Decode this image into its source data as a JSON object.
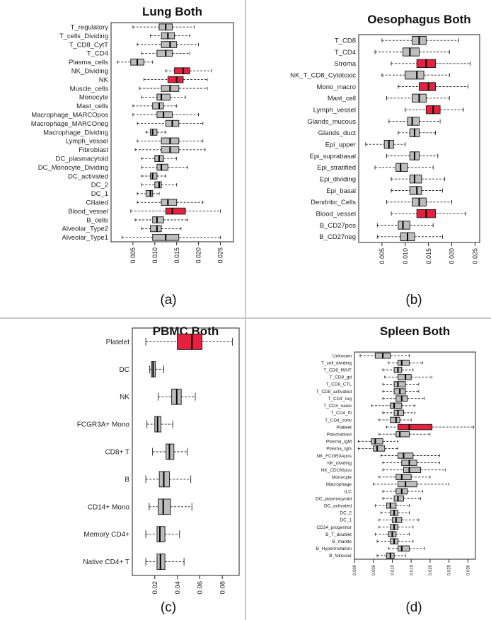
{
  "figure": {
    "captions": [
      "(a)",
      "(b)",
      "(c)",
      "(d)"
    ]
  },
  "colors": {
    "box_default": "#bdbdbd",
    "box_highlight": "#e8203f",
    "stroke": "#222222"
  },
  "chart_data": [
    {
      "type": "boxplot",
      "orientation": "horizontal",
      "title": "Lung Both",
      "xlim": [
        0.0,
        0.028
      ],
      "ticks": [
        0.005,
        0.01,
        0.015,
        0.02,
        0.025
      ],
      "tick_labels": [
        "0.005",
        "0.010",
        "0.015",
        "0.020",
        "0.025"
      ],
      "categories": [
        {
          "label": "T_regulatory",
          "stats": [
            0.005,
            0.011,
            0.0125,
            0.014,
            0.019
          ]
        },
        {
          "label": "T_cells_Dividing",
          "stats": [
            0.009,
            0.0115,
            0.013,
            0.0145,
            0.018
          ]
        },
        {
          "label": "T_CD8_CytT",
          "stats": [
            0.006,
            0.0115,
            0.0135,
            0.015,
            0.02
          ]
        },
        {
          "label": "T_CD4",
          "stats": [
            0.007,
            0.0105,
            0.0125,
            0.014,
            0.018
          ]
        },
        {
          "label": "Plasma_cells",
          "stats": [
            0.0015,
            0.0045,
            0.006,
            0.0075,
            0.0095
          ]
        },
        {
          "label": "NK_Dividing",
          "stats": [
            0.0125,
            0.0145,
            0.0165,
            0.018,
            0.023
          ]
        },
        {
          "label": "NK",
          "stats": [
            0.0075,
            0.013,
            0.015,
            0.0165,
            0.022
          ]
        },
        {
          "label": "Muscle_cells",
          "stats": [
            0.0065,
            0.0115,
            0.0135,
            0.0155,
            0.022
          ]
        },
        {
          "label": "Monocyte",
          "stats": [
            0.007,
            0.0105,
            0.0115,
            0.0135,
            0.017
          ]
        },
        {
          "label": "Mast_cells",
          "stats": [
            0.005,
            0.0095,
            0.011,
            0.012,
            0.015
          ]
        },
        {
          "label": "Macrophage_MARCOpos",
          "stats": [
            0.005,
            0.0105,
            0.012,
            0.014,
            0.02
          ]
        },
        {
          "label": "Macrophage_MARCOneg",
          "stats": [
            0.006,
            0.0125,
            0.014,
            0.0155,
            0.021
          ]
        },
        {
          "label": "Macrophage_Dividing",
          "stats": [
            0.008,
            0.009,
            0.0095,
            0.0105,
            0.0125
          ]
        },
        {
          "label": "Lymph_vessel",
          "stats": [
            0.006,
            0.0115,
            0.0135,
            0.0155,
            0.021
          ]
        },
        {
          "label": "Fibroblast",
          "stats": [
            0.0055,
            0.0115,
            0.0135,
            0.0155,
            0.0215
          ]
        },
        {
          "label": "DC_plasmacytoid",
          "stats": [
            0.007,
            0.01,
            0.011,
            0.012,
            0.015
          ]
        },
        {
          "label": "DC_Monocyte_Dividing",
          "stats": [
            0.007,
            0.0105,
            0.0115,
            0.013,
            0.0175
          ]
        },
        {
          "label": "DC_activated",
          "stats": [
            0.007,
            0.009,
            0.0095,
            0.0105,
            0.0125
          ]
        },
        {
          "label": "DC_2",
          "stats": [
            0.007,
            0.01,
            0.011,
            0.0115,
            0.015
          ]
        },
        {
          "label": "DC_1",
          "stats": [
            0.006,
            0.008,
            0.009,
            0.0095,
            0.011
          ]
        },
        {
          "label": "Ciliated",
          "stats": [
            0.006,
            0.0115,
            0.013,
            0.015,
            0.021
          ]
        },
        {
          "label": "Blood_vessel",
          "stats": [
            0.0045,
            0.0125,
            0.014,
            0.017,
            0.025
          ]
        },
        {
          "label": "B_cells",
          "stats": [
            0.0055,
            0.0095,
            0.0105,
            0.012,
            0.0175
          ]
        },
        {
          "label": "Alveolar_Type2",
          "stats": [
            0.007,
            0.009,
            0.0105,
            0.0115,
            0.016
          ]
        },
        {
          "label": "Alveolar_Type1",
          "stats": [
            0.0025,
            0.0095,
            0.0125,
            0.0155,
            0.025
          ]
        }
      ],
      "highlighted": [
        "NK_Dividing",
        "NK",
        "Blood_vessel"
      ]
    },
    {
      "type": "boxplot",
      "orientation": "horizontal",
      "title": "Oesophagus Both",
      "xlim": [
        0.0,
        0.026
      ],
      "ticks": [
        0.005,
        0.01,
        0.015,
        0.02,
        0.025
      ],
      "tick_labels": [
        "0.005",
        "0.010",
        "0.015",
        "0.020",
        "0.025"
      ],
      "categories": [
        {
          "label": "T_CD8",
          "stats": [
            0.005,
            0.0115,
            0.013,
            0.0145,
            0.0215
          ]
        },
        {
          "label": "T_CD4",
          "stats": [
            0.0035,
            0.0095,
            0.011,
            0.013,
            0.0195
          ]
        },
        {
          "label": "Stroma",
          "stats": [
            0.007,
            0.0125,
            0.0145,
            0.0165,
            0.024
          ]
        },
        {
          "label": "NK_T_CD8_Cytotoxic",
          "stats": [
            0.005,
            0.01,
            0.0125,
            0.014,
            0.0195
          ]
        },
        {
          "label": "Mono_macro",
          "stats": [
            0.0085,
            0.013,
            0.015,
            0.0165,
            0.0235
          ]
        },
        {
          "label": "Mast_cell",
          "stats": [
            0.006,
            0.0115,
            0.013,
            0.0145,
            0.0195
          ]
        },
        {
          "label": "Lymph_vessel",
          "stats": [
            0.01,
            0.0145,
            0.016,
            0.0175,
            0.0225
          ]
        },
        {
          "label": "Glands_mucous",
          "stats": [
            0.0065,
            0.0105,
            0.0115,
            0.013,
            0.0175
          ]
        },
        {
          "label": "Glands_duct",
          "stats": [
            0.0085,
            0.011,
            0.012,
            0.013,
            0.0165
          ]
        },
        {
          "label": "Epi_upper",
          "stats": [
            0.0015,
            0.0055,
            0.0065,
            0.0075,
            0.01
          ]
        },
        {
          "label": "Epi_suprabasal",
          "stats": [
            0.006,
            0.011,
            0.012,
            0.013,
            0.017
          ]
        },
        {
          "label": "Epi_stratified",
          "stats": [
            0.0035,
            0.008,
            0.009,
            0.0105,
            0.016
          ]
        },
        {
          "label": "Epi_dividing",
          "stats": [
            0.007,
            0.011,
            0.012,
            0.0135,
            0.0185
          ]
        },
        {
          "label": "Epi_basal",
          "stats": [
            0.007,
            0.011,
            0.0125,
            0.0135,
            0.018
          ]
        },
        {
          "label": "Dendritic_Cells",
          "stats": [
            0.006,
            0.0115,
            0.013,
            0.0145,
            0.02
          ]
        },
        {
          "label": "Blood_vessel",
          "stats": [
            0.007,
            0.0125,
            0.0145,
            0.0165,
            0.023
          ]
        },
        {
          "label": "B_CD27pos",
          "stats": [
            0.004,
            0.0085,
            0.0095,
            0.011,
            0.016
          ]
        },
        {
          "label": "B_CD27neg",
          "stats": [
            0.004,
            0.009,
            0.0105,
            0.012,
            0.018
          ]
        }
      ],
      "highlighted": [
        "Stroma",
        "Mono_macro",
        "Lymph_vessel",
        "Blood_vessel"
      ]
    },
    {
      "type": "boxplot",
      "orientation": "horizontal",
      "title": "PBMC Both",
      "xlim": [
        0.0,
        0.095
      ],
      "ticks": [
        0.02,
        0.04,
        0.06,
        0.08
      ],
      "tick_labels": [
        "0.02",
        "0.04",
        "0.06",
        "0.08"
      ],
      "categories": [
        {
          "label": "Platelet",
          "stats": [
            0.012,
            0.04,
            0.053,
            0.062,
            0.089
          ]
        },
        {
          "label": "DC",
          "stats": [
            0.0155,
            0.017,
            0.0185,
            0.0205,
            0.028
          ]
        },
        {
          "label": "NK",
          "stats": [
            0.023,
            0.035,
            0.0395,
            0.0435,
            0.056
          ]
        },
        {
          "label": "FCGR3A+ Mono",
          "stats": [
            0.013,
            0.02,
            0.0225,
            0.0255,
            0.036
          ]
        },
        {
          "label": "CD8+ T",
          "stats": [
            0.018,
            0.03,
            0.033,
            0.037,
            0.049
          ]
        },
        {
          "label": "B",
          "stats": [
            0.012,
            0.024,
            0.028,
            0.033,
            0.052
          ]
        },
        {
          "label": "CD14+ Mono",
          "stats": [
            0.015,
            0.023,
            0.0275,
            0.034,
            0.053
          ]
        },
        {
          "label": "Memory CD4+",
          "stats": [
            0.012,
            0.022,
            0.0245,
            0.029,
            0.042
          ]
        },
        {
          "label": "Native CD4+ T",
          "stats": [
            0.012,
            0.022,
            0.025,
            0.029,
            0.046
          ]
        }
      ],
      "highlighted": [
        "Platelet"
      ]
    },
    {
      "type": "boxplot",
      "orientation": "horizontal",
      "title": "Spleen Both",
      "xlim": [
        0.0,
        0.032
      ],
      "ticks": [
        0.0,
        0.005,
        0.01,
        0.015,
        0.02,
        0.025,
        0.03
      ],
      "tick_labels": [
        "0.000",
        "0.005",
        "0.010",
        "0.015",
        "0.020",
        "0.025",
        "0.030"
      ],
      "categories": [
        {
          "label": "Unknown",
          "stats": [
            0.0015,
            0.0055,
            0.0075,
            0.0095,
            0.0145
          ]
        },
        {
          "label": "T_cell_dividing",
          "stats": [
            0.009,
            0.0115,
            0.0125,
            0.0145,
            0.018
          ]
        },
        {
          "label": "T_CD8_MAIT",
          "stats": [
            0.0075,
            0.0105,
            0.0115,
            0.0125,
            0.0155
          ]
        },
        {
          "label": "T_CD8_gd",
          "stats": [
            0.008,
            0.0115,
            0.0135,
            0.015,
            0.0205
          ]
        },
        {
          "label": "T_CD8_CTL",
          "stats": [
            0.0075,
            0.0105,
            0.0115,
            0.0135,
            0.017
          ]
        },
        {
          "label": "T_CD8_activated",
          "stats": [
            0.0075,
            0.0105,
            0.012,
            0.0135,
            0.017
          ]
        },
        {
          "label": "T_CD4_reg",
          "stats": [
            0.0075,
            0.011,
            0.0125,
            0.014,
            0.0185
          ]
        },
        {
          "label": "T_CD4_naive",
          "stats": [
            0.0045,
            0.0095,
            0.0105,
            0.0125,
            0.016
          ]
        },
        {
          "label": "T_CD4_fh",
          "stats": [
            0.0075,
            0.0105,
            0.0115,
            0.013,
            0.016
          ]
        },
        {
          "label": "T_CD4_conv",
          "stats": [
            0.0065,
            0.0095,
            0.011,
            0.012,
            0.015
          ]
        },
        {
          "label": "Platelet",
          "stats": [
            0.0085,
            0.0115,
            0.0145,
            0.0205,
            0.0315
          ]
        },
        {
          "label": "Plasmablast",
          "stats": [
            0.0065,
            0.011,
            0.012,
            0.0145,
            0.02
          ]
        },
        {
          "label": "Plasma_IgM",
          "stats": [
            0.001,
            0.0045,
            0.0055,
            0.0075,
            0.0115
          ]
        },
        {
          "label": "Plasma_IgG",
          "stats": [
            0.001,
            0.005,
            0.006,
            0.008,
            0.0115
          ]
        },
        {
          "label": "NK_FCGR3Apos",
          "stats": [
            0.007,
            0.0115,
            0.013,
            0.0155,
            0.0225
          ]
        },
        {
          "label": "NK_dividing",
          "stats": [
            0.0075,
            0.0125,
            0.0145,
            0.0165,
            0.0225
          ]
        },
        {
          "label": "NK_CD160pos",
          "stats": [
            0.0075,
            0.013,
            0.0145,
            0.0175,
            0.024
          ]
        },
        {
          "label": "Monocyte",
          "stats": [
            0.0065,
            0.011,
            0.0125,
            0.015,
            0.02
          ]
        },
        {
          "label": "Macrophage",
          "stats": [
            0.005,
            0.0115,
            0.0135,
            0.0165,
            0.025
          ]
        },
        {
          "label": "ILC",
          "stats": [
            0.0075,
            0.011,
            0.0125,
            0.014,
            0.018
          ]
        },
        {
          "label": "DC_plasmacytoid",
          "stats": [
            0.0075,
            0.0105,
            0.0115,
            0.013,
            0.0175
          ]
        },
        {
          "label": "DC_activated",
          "stats": [
            0.0055,
            0.0085,
            0.0095,
            0.011,
            0.0145
          ]
        },
        {
          "label": "DC_2",
          "stats": [
            0.007,
            0.0095,
            0.0105,
            0.0115,
            0.0145
          ]
        },
        {
          "label": "DC_1",
          "stats": [
            0.0065,
            0.01,
            0.011,
            0.0125,
            0.017
          ]
        },
        {
          "label": "CD34_progenitor",
          "stats": [
            0.0065,
            0.0095,
            0.0105,
            0.0115,
            0.0155
          ]
        },
        {
          "label": "B_T_doublet",
          "stats": [
            0.0055,
            0.009,
            0.01,
            0.011,
            0.0145
          ]
        },
        {
          "label": "B_mantle",
          "stats": [
            0.006,
            0.0095,
            0.0105,
            0.0115,
            0.0155
          ]
        },
        {
          "label": "B_Hypermutation",
          "stats": [
            0.009,
            0.0115,
            0.0125,
            0.0145,
            0.0185
          ]
        },
        {
          "label": "B_follicular",
          "stats": [
            0.006,
            0.0085,
            0.0095,
            0.0105,
            0.0135
          ]
        }
      ],
      "highlighted": [
        "Platelet"
      ]
    }
  ]
}
